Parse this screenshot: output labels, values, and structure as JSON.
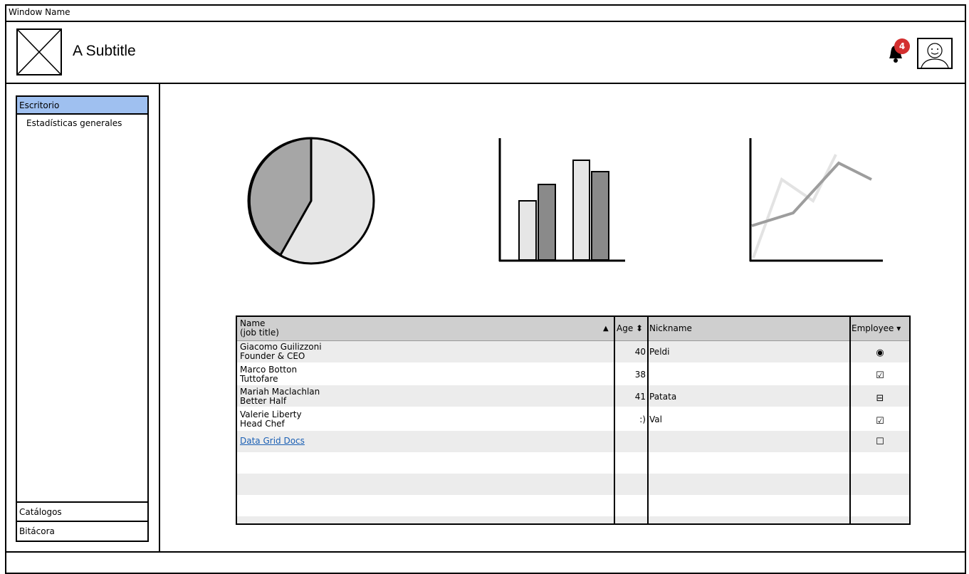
{
  "window": {
    "title": "Window Name"
  },
  "header": {
    "subtitle": "A Subtitle",
    "notifications": "4"
  },
  "sidebar": {
    "active": "Escritorio",
    "subitem": "Estadísticas generales",
    "items": [
      "Catálogos",
      "Bitácora"
    ]
  },
  "grid": {
    "columns": {
      "name": "Name",
      "name_sub": "(job title)",
      "age": "Age",
      "nickname": "Nickname",
      "employee": "Employee"
    },
    "rows": [
      {
        "name": "Giacomo Guilizzoni",
        "title": "Founder & CEO",
        "age": "40",
        "nickname": "Peldi",
        "employee": "◉"
      },
      {
        "name": "Marco Botton",
        "title": "Tuttofare",
        "age": "38",
        "nickname": "",
        "employee": "☑"
      },
      {
        "name": "Mariah Maclachlan",
        "title": "Better Half",
        "age": "41",
        "nickname": "Patata",
        "employee": "⊟"
      },
      {
        "name": "Valerie Liberty",
        "title": "Head Chef",
        "age": ":)",
        "nickname": "Val",
        "employee": "☑"
      }
    ],
    "link": {
      "label": "Data Grid Docs",
      "employee": "☐"
    }
  },
  "colors": {
    "accent": "#9fc0f0",
    "badge": "#d32f2f"
  }
}
